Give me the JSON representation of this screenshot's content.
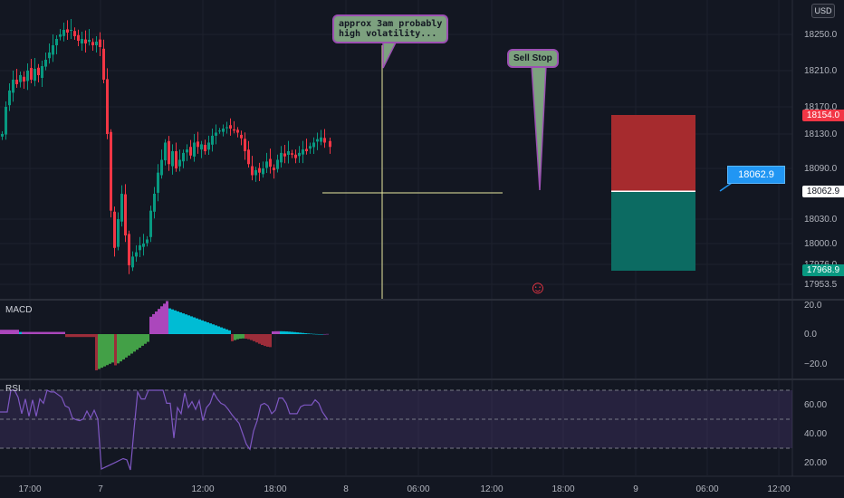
{
  "chart_data": [
    {
      "type": "candlestick",
      "pane": "price",
      "currency": "USD",
      "y_ticks": [
        18250.0,
        18210.0,
        18170.0,
        18130.0,
        18090.0,
        18030.0,
        18000.0,
        17976.0,
        17953.5
      ],
      "ylim": [
        17940,
        18270
      ],
      "price_tags": [
        {
          "value": "18154.0",
          "color": "#f23645"
        },
        {
          "value": "18062.9",
          "color": "#ffffff"
        },
        {
          "value": "17968.9",
          "color": "#089981"
        }
      ],
      "close_path": [
        [
          0,
          18130
        ],
        [
          4,
          18170
        ],
        [
          8,
          18188
        ],
        [
          12,
          18200
        ],
        [
          16,
          18195
        ],
        [
          20,
          18205
        ],
        [
          24,
          18198
        ],
        [
          28,
          18210
        ],
        [
          32,
          18200
        ],
        [
          36,
          18212
        ],
        [
          40,
          18205
        ],
        [
          44,
          18215
        ],
        [
          48,
          18222
        ],
        [
          52,
          18230
        ],
        [
          56,
          18238
        ],
        [
          60,
          18245
        ],
        [
          64,
          18250
        ],
        [
          68,
          18255
        ],
        [
          72,
          18252
        ],
        [
          76,
          18255
        ],
        [
          80,
          18248
        ],
        [
          84,
          18243
        ],
        [
          88,
          18245
        ],
        [
          92,
          18240
        ],
        [
          96,
          18244
        ],
        [
          100,
          18238
        ],
        [
          104,
          18242
        ],
        [
          108,
          18236
        ],
        [
          112,
          18200
        ],
        [
          116,
          18130
        ],
        [
          120,
          18040
        ],
        [
          124,
          17995
        ],
        [
          128,
          18030
        ],
        [
          132,
          18060
        ],
        [
          136,
          18010
        ],
        [
          140,
          17975
        ],
        [
          144,
          17985
        ],
        [
          148,
          17990
        ],
        [
          152,
          17998
        ],
        [
          156,
          18000
        ],
        [
          160,
          18005
        ],
        [
          164,
          18040
        ],
        [
          168,
          18060
        ],
        [
          172,
          18085
        ],
        [
          176,
          18100
        ],
        [
          180,
          18120
        ],
        [
          184,
          18095
        ],
        [
          188,
          18110
        ],
        [
          192,
          18090
        ],
        [
          196,
          18100
        ],
        [
          200,
          18108
        ],
        [
          204,
          18112
        ],
        [
          208,
          18105
        ],
        [
          212,
          18120
        ],
        [
          216,
          18115
        ],
        [
          220,
          18118
        ],
        [
          224,
          18110
        ],
        [
          228,
          18120
        ],
        [
          232,
          18128
        ],
        [
          236,
          18132
        ],
        [
          240,
          18135
        ],
        [
          244,
          18138
        ],
        [
          248,
          18140
        ],
        [
          252,
          18138
        ],
        [
          256,
          18135
        ],
        [
          260,
          18132
        ],
        [
          264,
          18125
        ],
        [
          268,
          18110
        ],
        [
          272,
          18095
        ],
        [
          276,
          18082
        ],
        [
          280,
          18088
        ],
        [
          284,
          18085
        ],
        [
          288,
          18090
        ],
        [
          292,
          18098
        ],
        [
          296,
          18092
        ],
        [
          300,
          18088
        ],
        [
          304,
          18100
        ],
        [
          308,
          18108
        ],
        [
          312,
          18104
        ],
        [
          316,
          18110
        ],
        [
          320,
          18106
        ],
        [
          324,
          18102
        ],
        [
          328,
          18108
        ],
        [
          332,
          18112
        ],
        [
          336,
          18110
        ],
        [
          340,
          18116
        ],
        [
          344,
          18120
        ],
        [
          348,
          18124
        ],
        [
          352,
          18126
        ],
        [
          356,
          18120
        ],
        [
          362,
          18115
        ]
      ],
      "annotations": [
        {
          "text": "approx 3am probably\nhigh volatility...",
          "kind": "callout"
        },
        {
          "text": "Sell Stop",
          "kind": "callout"
        }
      ],
      "position": {
        "side": "short",
        "entry": 18062.9,
        "stop": 18154.0,
        "target": 17968.9
      },
      "cursor_price": "18062.9",
      "grid": true
    },
    {
      "type": "histogram",
      "pane": "MACD",
      "title": "MACD",
      "y_ticks": [
        "20.0",
        "0.0",
        "−20.0"
      ],
      "ylim": [
        -25,
        25
      ],
      "colors": [
        "#2962ff",
        "#f23645",
        "#089981",
        "#ab47bc",
        "#00bcd4"
      ]
    },
    {
      "type": "line",
      "pane": "RSI",
      "title": "RSI",
      "y_ticks": [
        "60.00",
        "40.00",
        "20.00"
      ],
      "ylim": [
        10,
        80
      ],
      "bands": [
        70,
        50,
        30
      ],
      "series_color": "#7e57c2"
    }
  ],
  "x_axis": {
    "ticks": [
      "17:00",
      "7",
      "12:00",
      "18:00",
      "8",
      "06:00",
      "12:00",
      "18:00",
      "9",
      "06:00",
      "12:00"
    ]
  },
  "colors": {
    "up": "#089981",
    "down": "#f23645",
    "bg": "#131722",
    "crosshair": "#e8e8a0"
  }
}
